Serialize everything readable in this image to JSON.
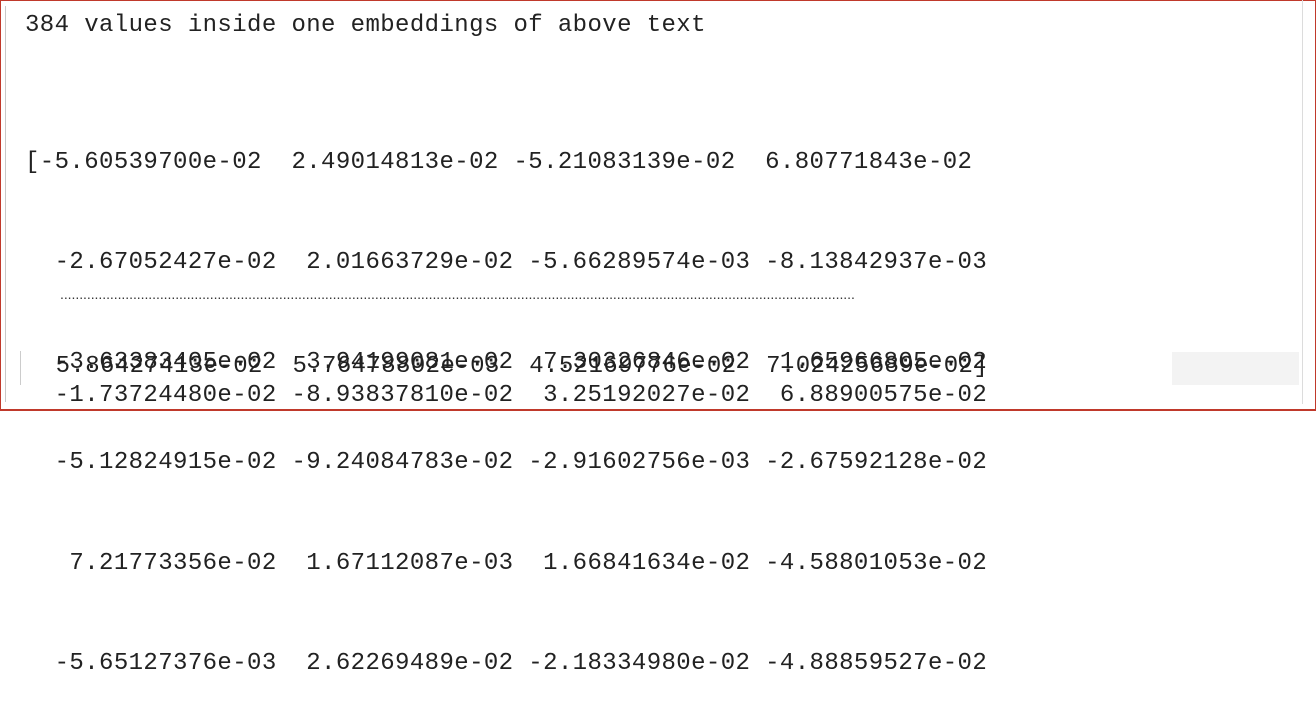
{
  "heading": "384 values inside one embeddings of above text",
  "rows": [
    "[-5.60539700e-02  2.49014813e-02 -5.21083139e-02  6.80771843e-02",
    "  -2.67052427e-02  2.01663729e-02 -5.66289574e-03 -8.13842937e-03",
    "  -3.63383405e-02  3.94199081e-02  7.30326846e-02  1.65966805e-02",
    "  -5.12824915e-02 -9.24084783e-02 -2.91602756e-03 -2.67592128e-02",
    "   7.21773356e-02  1.67112087e-03  1.66841634e-02 -4.58801053e-02",
    "  -5.65127376e-03  2.62269489e-02 -2.18334980e-02 -4.88859527e-02"
  ],
  "ellipsis": "...............................................................................................................................................................................................................",
  "tail_row": "  -1.73724480e-02 -8.93837810e-02  3.25192027e-02  6.88900575e-02",
  "last_row": "  5.86427413e-02  5.76478802e-03  4.52169776e-02  7.02425689e-02]",
  "colors": {
    "border": "#c0392b",
    "text": "#222222",
    "background": "#ffffff"
  }
}
